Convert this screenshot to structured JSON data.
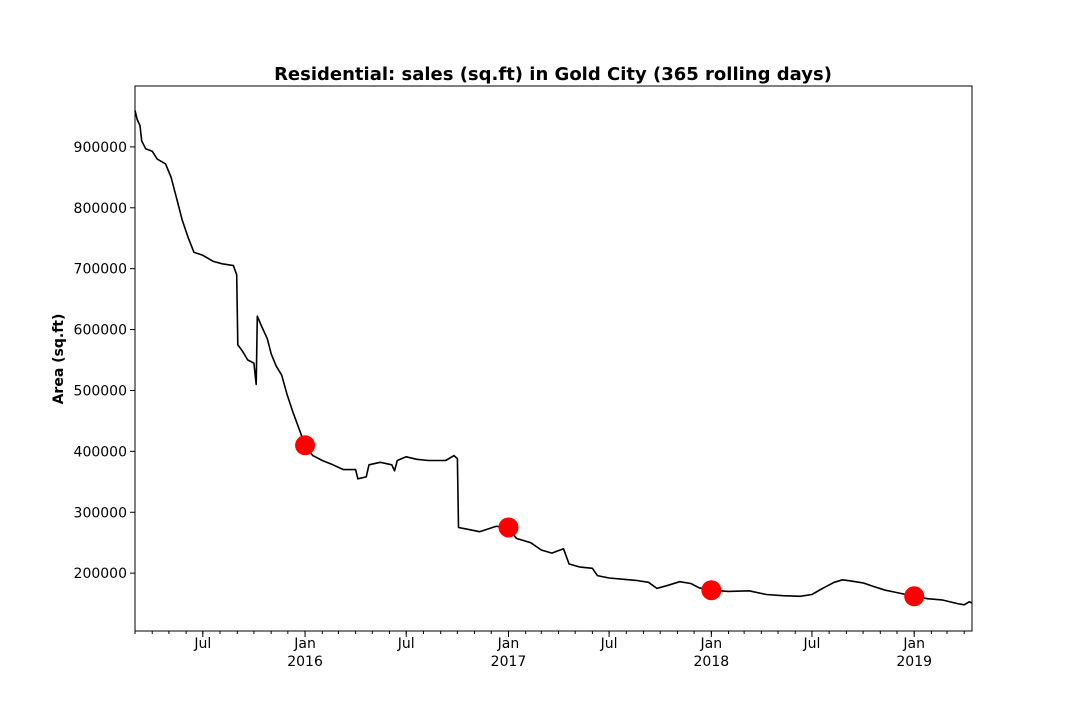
{
  "chart_data": {
    "type": "line",
    "title": "Residential: sales (sq.ft) in Gold City (365 rolling days)",
    "xlabel": "",
    "ylabel": "Area (sq.ft)",
    "xlim": [
      "2015-03-01",
      "2019-04-15"
    ],
    "ylim": [
      105000,
      1000000
    ],
    "y_ticks": [
      200000,
      300000,
      400000,
      500000,
      600000,
      700000,
      800000,
      900000
    ],
    "y_tick_labels": [
      "200000",
      "300000",
      "400000",
      "500000",
      "600000",
      "700000",
      "800000",
      "900000"
    ],
    "x_ticks": [
      {
        "date": "2015-07-01",
        "label": "Jul",
        "sublabel": ""
      },
      {
        "date": "2016-01-01",
        "label": "Jan",
        "sublabel": "2016"
      },
      {
        "date": "2016-07-01",
        "label": "Jul",
        "sublabel": ""
      },
      {
        "date": "2017-01-01",
        "label": "Jan",
        "sublabel": "2017"
      },
      {
        "date": "2017-07-01",
        "label": "Jul",
        "sublabel": ""
      },
      {
        "date": "2018-01-01",
        "label": "Jan",
        "sublabel": "2018"
      },
      {
        "date": "2018-07-01",
        "label": "Jul",
        "sublabel": ""
      },
      {
        "date": "2019-01-01",
        "label": "Jan",
        "sublabel": "2019"
      }
    ],
    "grid": false,
    "series": [
      {
        "color": "#000000",
        "points": [
          [
            "2015-03-01",
            960000
          ],
          [
            "2015-03-05",
            945000
          ],
          [
            "2015-03-10",
            935000
          ],
          [
            "2015-03-13",
            910000
          ],
          [
            "2015-03-20",
            897000
          ],
          [
            "2015-04-01",
            893000
          ],
          [
            "2015-04-10",
            880000
          ],
          [
            "2015-04-25",
            872000
          ],
          [
            "2015-05-05",
            850000
          ],
          [
            "2015-05-15",
            815000
          ],
          [
            "2015-05-25",
            780000
          ],
          [
            "2015-06-05",
            750000
          ],
          [
            "2015-06-15",
            727000
          ],
          [
            "2015-07-01",
            722000
          ],
          [
            "2015-07-20",
            712000
          ],
          [
            "2015-08-05",
            708000
          ],
          [
            "2015-08-25",
            705000
          ],
          [
            "2015-08-31",
            690000
          ],
          [
            "2015-09-02",
            575000
          ],
          [
            "2015-09-10",
            565000
          ],
          [
            "2015-09-20",
            550000
          ],
          [
            "2015-10-01",
            545000
          ],
          [
            "2015-10-05",
            510000
          ],
          [
            "2015-10-07",
            622000
          ],
          [
            "2015-10-15",
            605000
          ],
          [
            "2015-10-25",
            585000
          ],
          [
            "2015-11-01",
            560000
          ],
          [
            "2015-11-10",
            540000
          ],
          [
            "2015-11-20",
            525000
          ],
          [
            "2015-11-30",
            492000
          ],
          [
            "2015-12-10",
            465000
          ],
          [
            "2015-12-20",
            440000
          ],
          [
            "2016-01-01",
            410000
          ],
          [
            "2016-01-15",
            393000
          ],
          [
            "2016-02-01",
            385000
          ],
          [
            "2016-02-20",
            378000
          ],
          [
            "2016-03-10",
            370000
          ],
          [
            "2016-04-01",
            370000
          ],
          [
            "2016-04-05",
            355000
          ],
          [
            "2016-04-20",
            358000
          ],
          [
            "2016-04-25",
            378000
          ],
          [
            "2016-05-15",
            382000
          ],
          [
            "2016-06-05",
            378000
          ],
          [
            "2016-06-10",
            368000
          ],
          [
            "2016-06-15",
            385000
          ],
          [
            "2016-07-01",
            391000
          ],
          [
            "2016-07-20",
            387000
          ],
          [
            "2016-08-10",
            385000
          ],
          [
            "2016-09-10",
            385000
          ],
          [
            "2016-09-25",
            393000
          ],
          [
            "2016-10-01",
            388000
          ],
          [
            "2016-10-03",
            275000
          ],
          [
            "2016-10-20",
            272000
          ],
          [
            "2016-11-10",
            268000
          ],
          [
            "2016-12-10",
            277000
          ],
          [
            "2017-01-01",
            275000
          ],
          [
            "2017-01-15",
            257000
          ],
          [
            "2017-02-10",
            250000
          ],
          [
            "2017-03-01",
            238000
          ],
          [
            "2017-03-20",
            233000
          ],
          [
            "2017-04-10",
            240000
          ],
          [
            "2017-04-20",
            215000
          ],
          [
            "2017-05-10",
            210000
          ],
          [
            "2017-06-01",
            208000
          ],
          [
            "2017-06-10",
            196000
          ],
          [
            "2017-07-01",
            192000
          ],
          [
            "2017-07-25",
            190000
          ],
          [
            "2017-08-20",
            188000
          ],
          [
            "2017-09-10",
            185000
          ],
          [
            "2017-09-25",
            175000
          ],
          [
            "2017-10-15",
            180000
          ],
          [
            "2017-11-05",
            186000
          ],
          [
            "2017-11-25",
            183000
          ],
          [
            "2017-12-10",
            176000
          ],
          [
            "2018-01-01",
            172000
          ],
          [
            "2018-02-01",
            170000
          ],
          [
            "2018-03-10",
            171000
          ],
          [
            "2018-04-10",
            165000
          ],
          [
            "2018-05-10",
            163000
          ],
          [
            "2018-06-10",
            162000
          ],
          [
            "2018-07-01",
            165000
          ],
          [
            "2018-07-20",
            175000
          ],
          [
            "2018-08-10",
            185000
          ],
          [
            "2018-08-25",
            189000
          ],
          [
            "2018-09-10",
            187000
          ],
          [
            "2018-10-01",
            184000
          ],
          [
            "2018-10-20",
            178000
          ],
          [
            "2018-11-10",
            172000
          ],
          [
            "2018-12-01",
            168000
          ],
          [
            "2019-01-01",
            162000
          ],
          [
            "2019-01-25",
            158000
          ],
          [
            "2019-02-20",
            156000
          ],
          [
            "2019-03-20",
            150000
          ],
          [
            "2019-04-01",
            148000
          ],
          [
            "2019-04-10",
            153000
          ],
          [
            "2019-04-15",
            151000
          ]
        ]
      },
      {
        "type": "scatter",
        "color": "#ff0000",
        "points": [
          [
            "2016-01-01",
            410000
          ],
          [
            "2017-01-01",
            275000
          ],
          [
            "2018-01-01",
            172000
          ],
          [
            "2019-01-01",
            162000
          ]
        ]
      }
    ]
  }
}
